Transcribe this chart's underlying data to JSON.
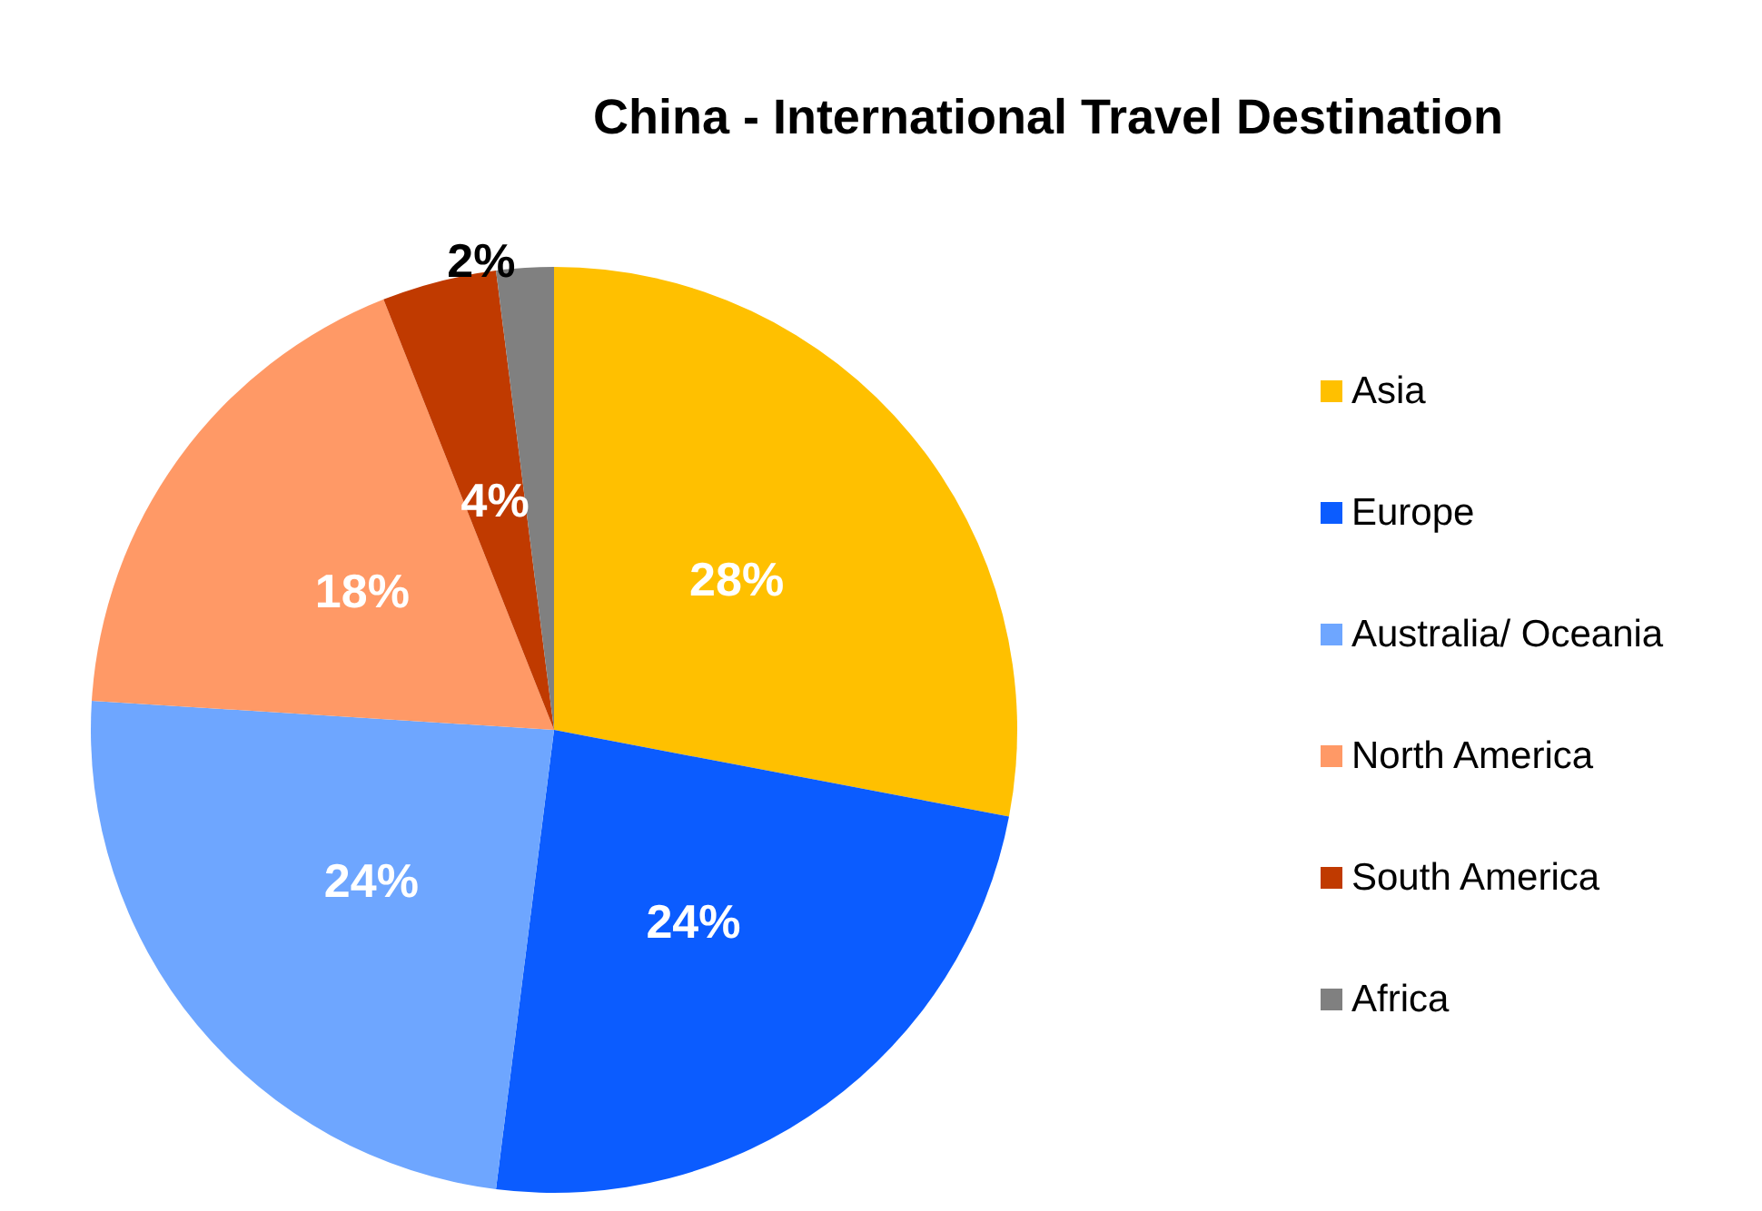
{
  "chart_data": {
    "type": "pie",
    "title": "China - International Travel Destination",
    "categories": [
      "Asia",
      "Europe",
      "Australia/ Oceania",
      "North America",
      "South America",
      "Africa"
    ],
    "values": [
      28,
      24,
      24,
      18,
      4,
      2
    ],
    "value_labels": [
      "28%",
      "24%",
      "24%",
      "18%",
      "4%",
      "2%"
    ],
    "colors": [
      "#ffc000",
      "#0b5cff",
      "#6ea6ff",
      "#ff9966",
      "#c03a00",
      "#808080"
    ],
    "legend": "right"
  }
}
